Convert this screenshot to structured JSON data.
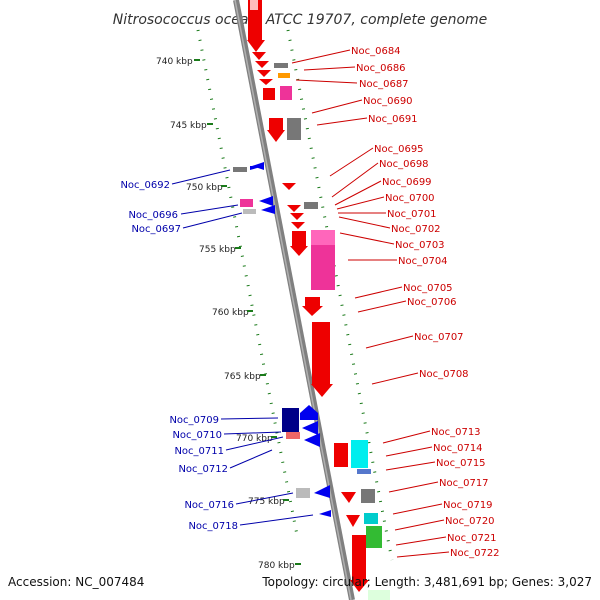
{
  "title": "Nitrosococcus oceani ATCC 19707, complete genome",
  "accession": "Accession: NC_007484",
  "topology": "Topology: circular; Length: 3,481,691 bp; Genes: 3,027",
  "colors": {
    "forward_label": "#cc0000",
    "reverse_label": "#0000aa",
    "backbone": "#808080",
    "ruler_dots": "#1a7a1a"
  },
  "ticks": [
    "740 kbp",
    "745 kbp",
    "750 kbp",
    "755 kbp",
    "760 kbp",
    "765 kbp",
    "770 kbp",
    "775 kbp",
    "780 kbp"
  ],
  "forward_labels": [
    "Noc_0684",
    "Noc_0686",
    "Noc_0687",
    "Noc_0690",
    "Noc_0691",
    "Noc_0695",
    "Noc_0698",
    "Noc_0699",
    "Noc_0700",
    "Noc_0701",
    "Noc_0702",
    "Noc_0703",
    "Noc_0704",
    "Noc_0705",
    "Noc_0706",
    "Noc_0707",
    "Noc_0708",
    "Noc_0713",
    "Noc_0714",
    "Noc_0715",
    "Noc_0717",
    "Noc_0719",
    "Noc_0720",
    "Noc_0721",
    "Noc_0722"
  ],
  "reverse_labels": [
    "Noc_0692",
    "Noc_0696",
    "Noc_0697",
    "Noc_0709",
    "Noc_0710",
    "Noc_0711",
    "Noc_0712",
    "Noc_0716",
    "Noc_0718"
  ]
}
